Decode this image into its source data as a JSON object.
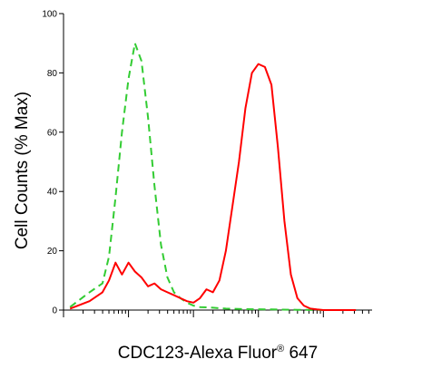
{
  "chart_data": {
    "type": "line",
    "xlabel": "CDC123-Alexa Fluor",
    "xlabel_mark": "®",
    "xlabel_suffix": " 647",
    "ylabel": "Cell Counts (% Max)",
    "x_scale": "log",
    "xlim": [
      -1.0,
      3.75
    ],
    "ylim": [
      0,
      100
    ],
    "y_ticks": [
      0,
      20,
      40,
      60,
      80,
      100
    ],
    "grid": false,
    "legend": "none",
    "series": [
      {
        "color": "#33cc33",
        "dash": "dashed",
        "x": [
          -0.9,
          -0.6,
          -0.4,
          -0.3,
          -0.2,
          -0.1,
          0.0,
          0.1,
          0.2,
          0.3,
          0.4,
          0.5,
          0.6,
          0.7,
          0.8,
          0.9,
          1.0,
          1.1,
          1.3,
          1.5,
          1.8,
          2.2,
          2.6,
          3.0,
          3.5
        ],
        "y": [
          1,
          6,
          9,
          18,
          38,
          60,
          78,
          90,
          84,
          65,
          42,
          22,
          11,
          6,
          4,
          2.5,
          1.5,
          1,
          0.8,
          0.5,
          0.3,
          0.2,
          0.1,
          0,
          0
        ]
      },
      {
        "color": "#ff0000",
        "dash": "solid",
        "x": [
          -0.9,
          -0.6,
          -0.4,
          -0.3,
          -0.2,
          -0.1,
          0.0,
          0.1,
          0.2,
          0.3,
          0.4,
          0.5,
          0.6,
          0.7,
          0.8,
          0.9,
          1.0,
          1.1,
          1.2,
          1.3,
          1.4,
          1.5,
          1.6,
          1.7,
          1.8,
          1.9,
          2.0,
          2.1,
          2.2,
          2.3,
          2.4,
          2.5,
          2.6,
          2.7,
          2.8,
          2.9,
          3.0,
          3.2,
          3.5
        ],
        "y": [
          0.5,
          3,
          6,
          10,
          16,
          12,
          16,
          13,
          11,
          8,
          9,
          7,
          6,
          5,
          4,
          3,
          2.5,
          4,
          7,
          6,
          10,
          20,
          35,
          50,
          68,
          80,
          83,
          82,
          76,
          55,
          30,
          12,
          4,
          1.5,
          0.5,
          0.2,
          0,
          0,
          0
        ]
      }
    ]
  }
}
